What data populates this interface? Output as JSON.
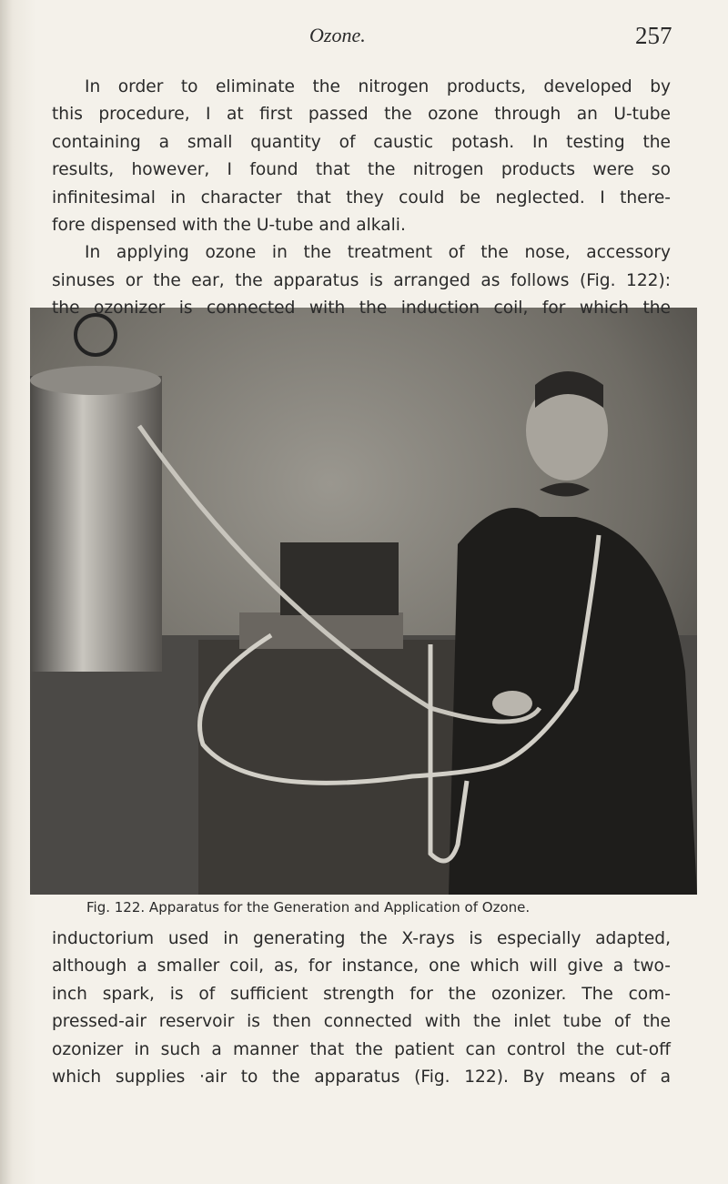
{
  "header": {
    "title": "Ozone.",
    "page_number": "257"
  },
  "paragraphs": [
    {
      "indent": true,
      "lines": [
        "In order to eliminate the nitrogen products, developed by",
        "this procedure, I at first passed the ozone through an U-tube",
        "containing a small quantity of caustic potash. In testing the",
        "results, however, I found that the nitrogen products were so",
        "infinitesimal in character that they could be neglected. I there-",
        "fore dispensed with the U-tube and alkali."
      ],
      "ends": true
    },
    {
      "indent": true,
      "lines": [
        "In applying ozone in the treatment of the nose, accessory",
        "sinuses or the ear, the apparatus is arranged as follows (Fig. 122):",
        "the ozonizer is connected with the induction coil, for which the"
      ],
      "ends": false
    }
  ],
  "figure": {
    "caption": "Fig. 122. Apparatus for the Generation and Application of Ozone."
  },
  "after_figure": {
    "indent": false,
    "lines": [
      "inductorium used in generating the X-rays is especially adapted,",
      "although a smaller coil, as, for instance, one which will give a two-",
      "inch spark, is of sufficient strength for the ozonizer. The com-",
      "pressed-air reservoir is then connected with the inlet tube of the",
      "ozonizer in such a manner that the patient can control the cut-off",
      "which supplies ·air to the apparatus (Fig. 122). By means of a"
    ],
    "ends": false
  }
}
